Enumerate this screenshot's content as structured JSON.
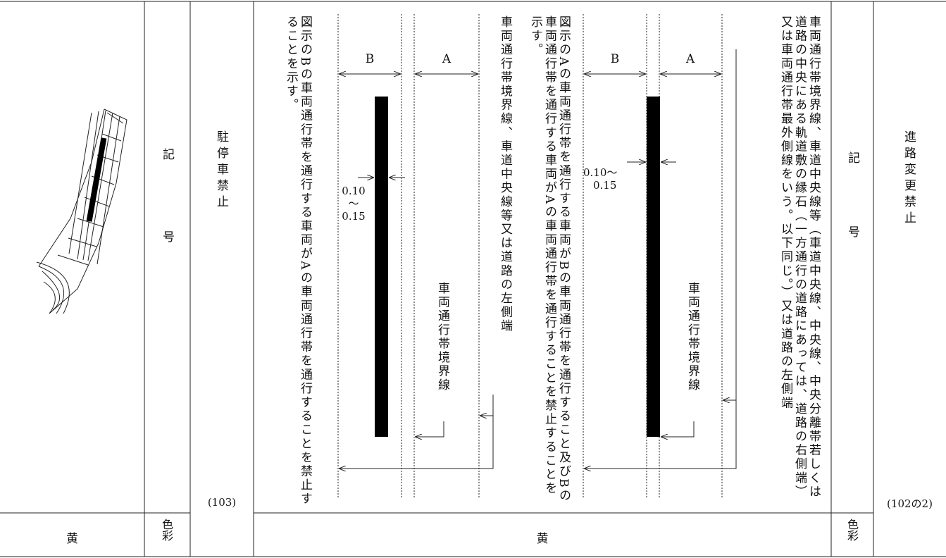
{
  "right_entry": {
    "name": "進路変更禁止",
    "number": "(102の2)",
    "symbol_label": "記号",
    "color_label": "色彩",
    "color": "黄",
    "diagram": {
      "description": "車両通行帯境界線、車道中央線等（車道中央線、中央線、中央分離帯若しくは道路の中央にある軌道敷の縁石（一方通行の道路にあっては、道路の右側端）又は車両通行帯最外側線をいう。以下同じ。）又は道路の左側端",
      "lane_a": "A",
      "lane_b": "B",
      "width": [
        "0.10～",
        "0.15"
      ],
      "boundary_label": "車両通行帯境界線",
      "meaning": "図示のAの車両通行帯を通行する車両がBの車両通行帯を通行すること及びBの車両通行帯を通行する車両がAの車両通行帯を通行することを禁止することを示す。"
    }
  },
  "left_entry": {
    "name": "駐停車禁止",
    "number": "(103)",
    "symbol_label": "記号",
    "color_label": "色彩",
    "color": "黄",
    "diagram": {
      "edge_note": "車両通行帯境界線、車道中央線等又は道路の左側端",
      "lane_a": "A",
      "lane_b": "B",
      "width": [
        "0.10",
        "～",
        "0.15"
      ],
      "boundary_label": "車両通行帯境界線",
      "meaning": "図示のBの車両通行帯を通行する車両がAの車両通行帯を通行することを禁止することを示す。"
    }
  }
}
